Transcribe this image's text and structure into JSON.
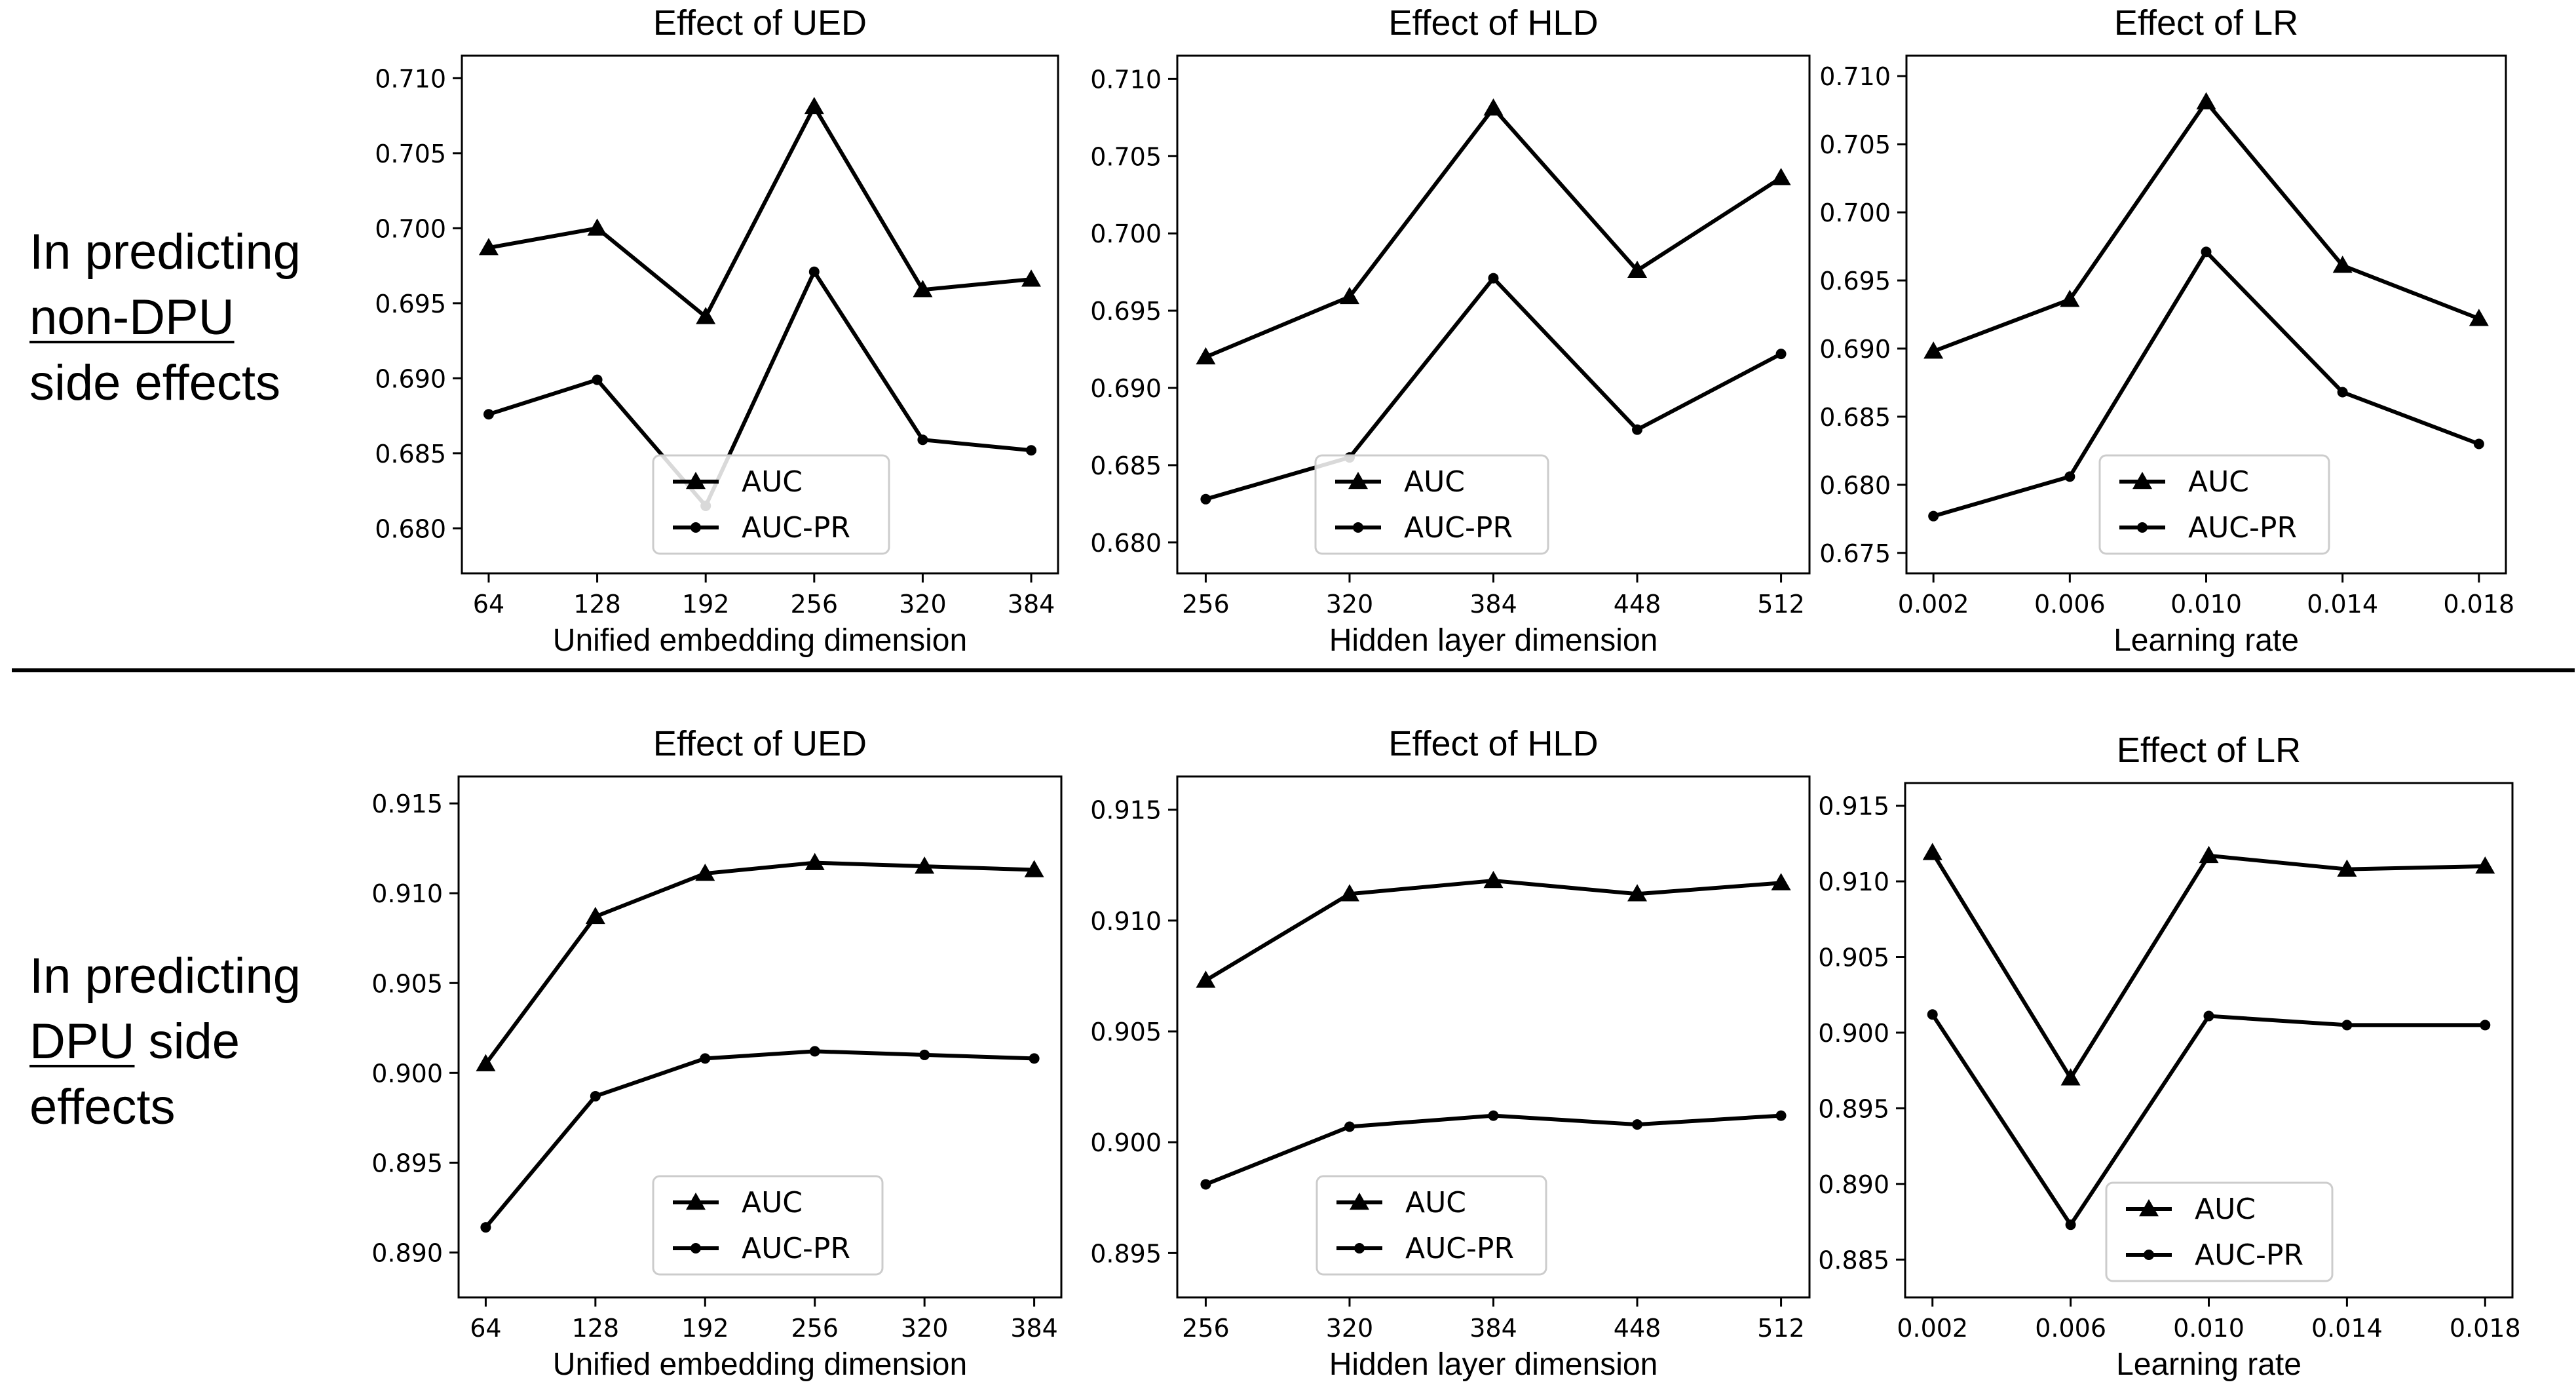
{
  "rows": [
    {
      "label": {
        "line1": "In predicting",
        "underlined": "non-DPU",
        "line2": "",
        "line3": "side effects"
      }
    },
    {
      "label": {
        "line1": "In predicting",
        "underlined": "DPU",
        "line2": " side",
        "line3": "effects"
      }
    }
  ],
  "chart_data": [
    {
      "type": "line",
      "title": "Effect of UED",
      "xlabel": "Unified embedding dimension",
      "x": [
        64,
        128,
        192,
        256,
        320,
        384
      ],
      "x_ticks": [
        "64",
        "128",
        "192",
        "256",
        "320",
        "384"
      ],
      "ylim": [
        0.677,
        0.7115
      ],
      "y_ticks": [
        "0.680",
        "0.685",
        "0.690",
        "0.695",
        "0.700",
        "0.705",
        "0.710"
      ],
      "series": [
        {
          "name": "AUC",
          "marker": "triangle",
          "values": [
            0.6987,
            0.7,
            0.6941,
            0.7081,
            0.6959,
            0.6966
          ]
        },
        {
          "name": "AUC-PR",
          "marker": "circle",
          "values": [
            0.6876,
            0.6899,
            0.6815,
            0.6971,
            0.6859,
            0.6852
          ]
        }
      ],
      "legend": "lower center"
    },
    {
      "type": "line",
      "title": "Effect of HLD",
      "xlabel": "Hidden layer dimension",
      "x": [
        256,
        320,
        384,
        448,
        512
      ],
      "x_ticks": [
        "256",
        "320",
        "384",
        "448",
        "512"
      ],
      "ylim": [
        0.678,
        0.7115
      ],
      "y_ticks": [
        "0.680",
        "0.685",
        "0.690",
        "0.695",
        "0.700",
        "0.705",
        "0.710"
      ],
      "series": [
        {
          "name": "AUC",
          "marker": "triangle",
          "values": [
            0.692,
            0.6959,
            0.7081,
            0.6976,
            0.7036
          ]
        },
        {
          "name": "AUC-PR",
          "marker": "circle",
          "values": [
            0.6828,
            0.6855,
            0.6971,
            0.6873,
            0.6922
          ]
        }
      ],
      "legend": "lower center"
    },
    {
      "type": "line",
      "title": "Effect of LR",
      "xlabel": "Learning rate",
      "x": [
        0.002,
        0.006,
        0.01,
        0.014,
        0.018
      ],
      "x_ticks": [
        "0.002",
        "0.006",
        "0.010",
        "0.014",
        "0.018"
      ],
      "ylim": [
        0.6735,
        0.7115
      ],
      "y_ticks": [
        "0.675",
        "0.680",
        "0.685",
        "0.690",
        "0.695",
        "0.700",
        "0.705",
        "0.710"
      ],
      "series": [
        {
          "name": "AUC",
          "marker": "triangle",
          "values": [
            0.6898,
            0.6936,
            0.7081,
            0.6961,
            0.6922
          ]
        },
        {
          "name": "AUC-PR",
          "marker": "circle",
          "values": [
            0.6777,
            0.6806,
            0.6971,
            0.6868,
            0.683
          ]
        }
      ],
      "legend": "lower center"
    },
    {
      "type": "line",
      "title": "Effect of UED",
      "xlabel": "Unified embedding dimension",
      "x": [
        64,
        128,
        192,
        256,
        320,
        384
      ],
      "x_ticks": [
        "64",
        "128",
        "192",
        "256",
        "320",
        "384"
      ],
      "ylim": [
        0.8875,
        0.9165
      ],
      "y_ticks": [
        "0.890",
        "0.895",
        "0.900",
        "0.905",
        "0.910",
        "0.915"
      ],
      "series": [
        {
          "name": "AUC",
          "marker": "triangle",
          "values": [
            0.9005,
            0.9087,
            0.9111,
            0.9117,
            0.9115,
            0.9113
          ]
        },
        {
          "name": "AUC-PR",
          "marker": "circle",
          "values": [
            0.8914,
            0.8987,
            0.9008,
            0.9012,
            0.901,
            0.9008
          ]
        }
      ],
      "legend": "lower center"
    },
    {
      "type": "line",
      "title": "Effect of HLD",
      "xlabel": "Hidden layer dimension",
      "x": [
        256,
        320,
        384,
        448,
        512
      ],
      "x_ticks": [
        "256",
        "320",
        "384",
        "448",
        "512"
      ],
      "ylim": [
        0.893,
        0.9165
      ],
      "y_ticks": [
        "0.895",
        "0.900",
        "0.905",
        "0.910",
        "0.915"
      ],
      "series": [
        {
          "name": "AUC",
          "marker": "triangle",
          "values": [
            0.9073,
            0.9112,
            0.9118,
            0.9112,
            0.9117
          ]
        },
        {
          "name": "AUC-PR",
          "marker": "circle",
          "values": [
            0.8981,
            0.9007,
            0.9012,
            0.9008,
            0.9012
          ]
        }
      ],
      "legend": "lower center"
    },
    {
      "type": "line",
      "title": "Effect of LR",
      "xlabel": "Learning rate",
      "x": [
        0.002,
        0.006,
        0.01,
        0.014,
        0.018
      ],
      "x_ticks": [
        "0.002",
        "0.006",
        "0.010",
        "0.014",
        "0.018"
      ],
      "ylim": [
        0.8825,
        0.9165
      ],
      "y_ticks": [
        "0.885",
        "0.890",
        "0.895",
        "0.900",
        "0.905",
        "0.910",
        "0.915"
      ],
      "series": [
        {
          "name": "AUC",
          "marker": "triangle",
          "values": [
            0.9119,
            0.897,
            0.9117,
            0.9108,
            0.911
          ]
        },
        {
          "name": "AUC-PR",
          "marker": "circle",
          "values": [
            0.9012,
            0.8873,
            0.9011,
            0.9005,
            0.9005
          ]
        }
      ],
      "legend": "lower right"
    }
  ]
}
